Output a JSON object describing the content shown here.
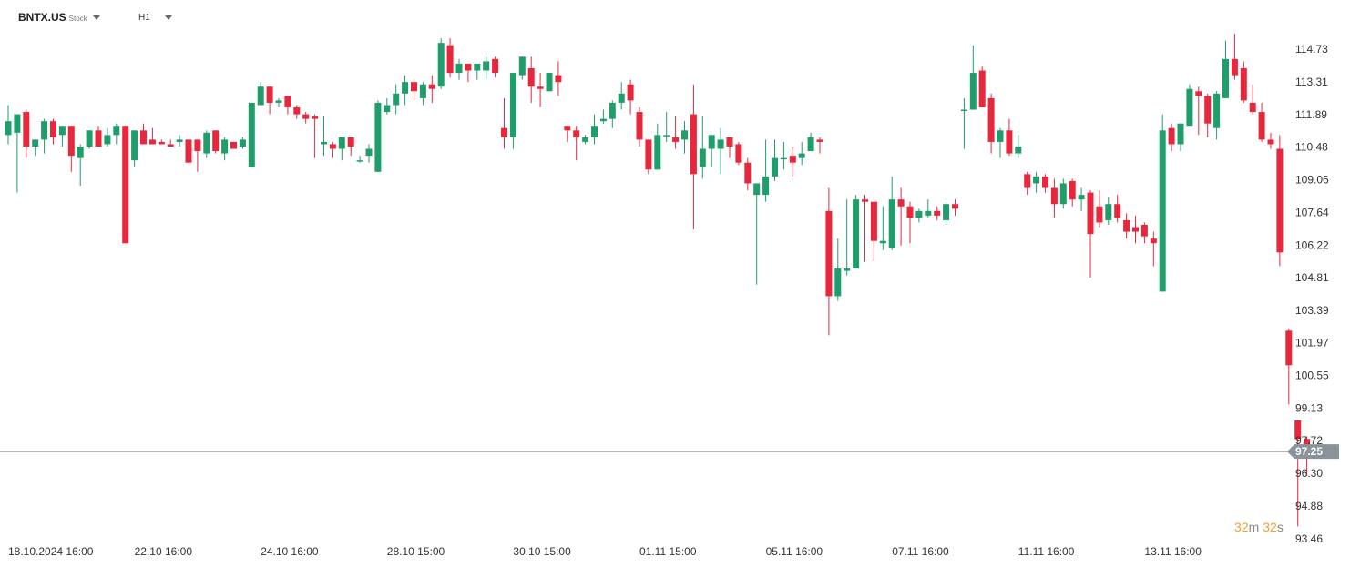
{
  "header": {
    "symbol": "BNTX.US",
    "instrument_type": "Stock",
    "timeframe": "H1"
  },
  "countdown": {
    "min": "32",
    "min_unit": "m",
    "sec": "32",
    "sec_unit": "s"
  },
  "colors": {
    "up": "#1f9d6a",
    "down": "#e8273d",
    "price_line": "#888888",
    "price_tag": "#8a9399",
    "countdown": "#f0a030"
  },
  "chart_data": {
    "type": "candlestick",
    "current_price": "97.25",
    "y_ticks": [
      "114.73",
      "113.31",
      "111.89",
      "110.48",
      "109.06",
      "107.64",
      "106.22",
      "104.81",
      "103.39",
      "101.97",
      "100.55",
      "99.13",
      "97.72",
      "96.30",
      "94.88",
      "93.46"
    ],
    "ylim": [
      93.46,
      114.73
    ],
    "x_labels": [
      {
        "label": "18.10.2024  16:00",
        "index": 0
      },
      {
        "label": "22.10  16:00",
        "index": 14
      },
      {
        "label": "24.10  16:00",
        "index": 28
      },
      {
        "label": "28.10  15:00",
        "index": 42
      },
      {
        "label": "30.10  15:00",
        "index": 56
      },
      {
        "label": "01.11  15:00",
        "index": 70
      },
      {
        "label": "05.11  16:00",
        "index": 84
      },
      {
        "label": "07.11  16:00",
        "index": 98
      },
      {
        "label": "11.11  16:00",
        "index": 112
      },
      {
        "label": "13.11  16:00",
        "index": 126
      }
    ],
    "candles": [
      [
        0,
        111.0,
        111.6,
        110.6,
        112.3
      ],
      [
        1,
        111.1,
        111.9,
        108.5,
        111.9
      ],
      [
        2,
        112.0,
        110.5,
        110.0,
        112.1
      ],
      [
        3,
        110.5,
        110.8,
        110.1,
        110.8
      ],
      [
        4,
        110.8,
        111.6,
        110.2,
        111.7
      ],
      [
        5,
        111.6,
        110.9,
        110.6,
        111.7
      ],
      [
        6,
        111.0,
        111.4,
        110.5,
        111.4
      ],
      [
        7,
        111.4,
        110.1,
        109.4,
        111.4
      ],
      [
        8,
        110.0,
        110.5,
        108.8,
        110.6
      ],
      [
        9,
        110.5,
        111.2,
        110.4,
        111.2
      ],
      [
        10,
        111.2,
        110.5,
        110.5,
        111.4
      ],
      [
        11,
        110.6,
        111.0,
        110.5,
        111.3
      ],
      [
        12,
        111.0,
        111.4,
        110.6,
        111.5
      ],
      [
        13,
        111.4,
        106.3,
        106.3,
        111.4
      ],
      [
        14,
        109.9,
        111.2,
        109.6,
        111.2
      ],
      [
        15,
        111.2,
        110.6,
        110.6,
        111.5
      ],
      [
        16,
        110.8,
        110.6,
        110.6,
        111.3
      ],
      [
        17,
        110.7,
        110.6,
        110.6,
        110.8
      ],
      [
        18,
        110.6,
        110.5,
        110.5,
        110.8
      ],
      [
        19,
        110.7,
        110.8,
        110.5,
        111.0
      ],
      [
        20,
        110.8,
        109.8,
        109.8,
        110.8
      ],
      [
        21,
        110.8,
        110.3,
        109.4,
        110.8
      ],
      [
        22,
        110.2,
        111.1,
        110.0,
        111.2
      ],
      [
        23,
        111.2,
        110.3,
        110.2,
        111.2
      ],
      [
        24,
        110.2,
        110.8,
        109.9,
        110.9
      ],
      [
        25,
        110.7,
        110.4,
        110.4,
        110.7
      ],
      [
        26,
        110.5,
        110.8,
        110.4,
        110.9
      ],
      [
        27,
        109.6,
        112.4,
        109.6,
        112.4
      ],
      [
        28,
        112.3,
        113.1,
        112.3,
        113.3
      ],
      [
        29,
        113.1,
        112.4,
        111.9,
        113.1
      ],
      [
        30,
        112.4,
        112.5,
        112.2,
        112.6
      ],
      [
        31,
        112.7,
        112.2,
        111.9,
        112.7
      ],
      [
        32,
        112.2,
        111.9,
        111.7,
        112.3
      ],
      [
        33,
        111.9,
        111.7,
        111.5,
        112.0
      ],
      [
        34,
        111.8,
        111.7,
        110.0,
        111.9
      ],
      [
        35,
        110.6,
        110.7,
        110.1,
        111.8
      ],
      [
        36,
        110.6,
        110.4,
        110.0,
        110.7
      ],
      [
        37,
        110.4,
        110.9,
        109.9,
        110.9
      ],
      [
        38,
        110.9,
        110.5,
        110.1,
        110.9
      ],
      [
        39,
        109.9,
        109.9,
        109.8,
        110.1
      ],
      [
        40,
        110.1,
        110.4,
        109.8,
        110.6
      ],
      [
        41,
        109.4,
        112.4,
        109.4,
        112.5
      ],
      [
        42,
        112.0,
        112.3,
        111.9,
        112.6
      ],
      [
        43,
        112.3,
        112.8,
        111.9,
        113.2
      ],
      [
        44,
        112.8,
        113.3,
        112.3,
        113.6
      ],
      [
        45,
        113.3,
        112.9,
        112.5,
        113.4
      ],
      [
        46,
        112.6,
        113.2,
        112.3,
        113.3
      ],
      [
        47,
        113.2,
        113.0,
        112.4,
        113.6
      ],
      [
        48,
        113.1,
        115.0,
        113.0,
        115.2
      ],
      [
        49,
        114.9,
        113.7,
        113.5,
        115.2
      ],
      [
        50,
        113.7,
        114.1,
        113.4,
        114.3
      ],
      [
        51,
        114.1,
        113.8,
        113.3,
        114.1
      ],
      [
        52,
        113.8,
        114.1,
        113.4,
        114.1
      ],
      [
        53,
        113.8,
        114.2,
        113.4,
        114.4
      ],
      [
        54,
        114.3,
        113.7,
        113.5,
        114.4
      ],
      [
        55,
        111.3,
        110.9,
        110.4,
        112.6
      ],
      [
        56,
        110.9,
        113.7,
        110.4,
        113.7
      ],
      [
        57,
        113.6,
        114.4,
        113.4,
        114.4
      ],
      [
        58,
        113.9,
        113.1,
        112.4,
        114.4
      ],
      [
        59,
        113.1,
        113.0,
        112.2,
        113.7
      ],
      [
        60,
        112.9,
        113.7,
        112.9,
        113.7
      ],
      [
        61,
        113.6,
        113.3,
        112.7,
        114.2
      ],
      [
        62,
        111.4,
        111.2,
        110.7,
        111.4
      ],
      [
        63,
        111.2,
        110.9,
        109.9,
        111.4
      ],
      [
        64,
        110.7,
        110.9,
        110.6,
        111.0
      ],
      [
        65,
        110.9,
        111.4,
        110.6,
        111.9
      ],
      [
        66,
        111.6,
        111.7,
        111.5,
        112.1
      ],
      [
        67,
        111.7,
        112.4,
        111.3,
        112.5
      ],
      [
        68,
        112.4,
        112.8,
        112.1,
        113.3
      ],
      [
        69,
        113.2,
        112.5,
        111.9,
        113.4
      ],
      [
        70,
        112.0,
        110.8,
        110.5,
        112.2
      ],
      [
        71,
        110.8,
        109.5,
        109.3,
        110.8
      ],
      [
        72,
        109.5,
        111.0,
        109.5,
        111.5
      ],
      [
        73,
        111.0,
        111.0,
        110.7,
        112.0
      ],
      [
        74,
        110.9,
        110.7,
        110.4,
        111.8
      ],
      [
        75,
        110.8,
        111.2,
        110.2,
        111.6
      ],
      [
        76,
        111.9,
        109.3,
        106.9,
        113.2
      ],
      [
        77,
        109.6,
        110.4,
        109.1,
        111.8
      ],
      [
        78,
        110.4,
        111.0,
        109.6,
        111.0
      ],
      [
        79,
        110.4,
        110.8,
        109.3,
        111.3
      ],
      [
        80,
        110.9,
        110.5,
        110.0,
        110.8
      ],
      [
        81,
        110.6,
        109.8,
        109.7,
        110.7
      ],
      [
        82,
        109.8,
        108.9,
        108.6,
        110.0
      ],
      [
        83,
        108.4,
        108.9,
        104.5,
        108.9
      ],
      [
        84,
        108.4,
        109.2,
        108.1,
        110.8
      ],
      [
        85,
        109.2,
        110.0,
        109.0,
        110.8
      ],
      [
        86,
        110.0,
        110.0,
        109.5,
        110.7
      ],
      [
        87,
        110.1,
        109.8,
        109.2,
        110.5
      ],
      [
        88,
        110.0,
        110.2,
        109.7,
        110.7
      ],
      [
        89,
        110.3,
        110.9,
        110.3,
        111.1
      ],
      [
        90,
        110.8,
        110.7,
        110.2,
        110.9
      ],
      [
        91,
        107.7,
        104.0,
        102.3,
        108.7
      ],
      [
        92,
        104.0,
        105.2,
        103.8,
        106.5
      ],
      [
        93,
        105.1,
        105.2,
        104.9,
        108.2
      ],
      [
        94,
        105.2,
        108.2,
        105.2,
        108.4
      ],
      [
        95,
        108.2,
        108.1,
        105.5,
        108.4
      ],
      [
        96,
        108.1,
        106.4,
        105.5,
        108.1
      ],
      [
        97,
        106.3,
        106.4,
        106.0,
        107.9
      ],
      [
        98,
        106.1,
        108.2,
        106.0,
        109.2
      ],
      [
        99,
        108.2,
        107.9,
        106.2,
        108.7
      ],
      [
        100,
        107.9,
        107.4,
        106.3,
        108.1
      ],
      [
        101,
        107.4,
        107.7,
        107.2,
        107.8
      ],
      [
        102,
        107.5,
        107.7,
        107.4,
        108.2
      ],
      [
        103,
        107.7,
        107.5,
        107.3,
        107.9
      ],
      [
        104,
        107.3,
        108.0,
        107.1,
        108.1
      ],
      [
        105,
        108.0,
        107.8,
        107.5,
        108.2
      ],
      [
        106,
        112.1,
        112.1,
        110.4,
        112.6
      ],
      [
        107,
        112.1,
        113.7,
        112.1,
        114.9
      ],
      [
        108,
        113.8,
        112.2,
        112.2,
        114.0
      ],
      [
        109,
        112.6,
        110.7,
        110.2,
        112.8
      ],
      [
        110,
        110.7,
        111.2,
        110.0,
        111.3
      ],
      [
        111,
        111.2,
        110.2,
        110.1,
        111.7
      ],
      [
        112,
        110.2,
        110.5,
        110.0,
        111.0
      ],
      [
        113,
        109.3,
        108.7,
        108.4,
        109.4
      ],
      [
        114,
        108.9,
        109.2,
        108.5,
        109.4
      ],
      [
        115,
        109.2,
        108.7,
        108.5,
        109.3
      ],
      [
        116,
        108.7,
        108.0,
        107.4,
        109.1
      ],
      [
        117,
        108.0,
        108.9,
        107.8,
        109.1
      ],
      [
        118,
        109.0,
        108.2,
        107.9,
        109.1
      ],
      [
        119,
        108.2,
        108.4,
        107.7,
        108.7
      ],
      [
        120,
        108.5,
        106.7,
        104.8,
        108.6
      ],
      [
        121,
        107.9,
        107.2,
        107.0,
        108.6
      ],
      [
        122,
        107.3,
        108.0,
        107.1,
        108.3
      ],
      [
        123,
        108.0,
        107.4,
        107.2,
        108.4
      ],
      [
        124,
        107.3,
        106.8,
        106.5,
        107.6
      ],
      [
        125,
        107.0,
        106.8,
        106.3,
        107.5
      ],
      [
        126,
        107.1,
        106.6,
        106.3,
        107.2
      ],
      [
        127,
        106.5,
        106.3,
        105.3,
        106.8
      ],
      [
        128,
        104.2,
        111.2,
        104.2,
        111.9
      ],
      [
        129,
        111.3,
        110.6,
        110.3,
        111.5
      ],
      [
        130,
        110.6,
        111.5,
        110.3,
        111.5
      ],
      [
        131,
        111.4,
        113.0,
        111.5,
        113.2
      ],
      [
        132,
        112.9,
        112.7,
        111.0,
        113.1
      ],
      [
        133,
        112.7,
        111.5,
        110.9,
        112.8
      ],
      [
        134,
        111.3,
        112.8,
        110.8,
        112.9
      ],
      [
        135,
        112.6,
        114.3,
        112.6,
        115.1
      ],
      [
        136,
        114.3,
        113.6,
        113.4,
        115.4
      ],
      [
        137,
        113.9,
        112.5,
        112.4,
        114.2
      ],
      [
        138,
        112.4,
        112.0,
        111.9,
        113.2
      ],
      [
        139,
        112.0,
        110.8,
        110.7,
        112.4
      ],
      [
        140,
        110.8,
        110.6,
        110.4,
        111.1
      ],
      [
        141,
        110.4,
        105.9,
        105.3,
        111.0
      ],
      [
        142,
        102.5,
        101.0,
        99.3,
        102.6
      ],
      [
        143,
        98.6,
        97.8,
        94.0,
        98.6
      ],
      [
        144,
        97.8,
        97.3,
        96.2,
        97.9
      ]
    ]
  }
}
